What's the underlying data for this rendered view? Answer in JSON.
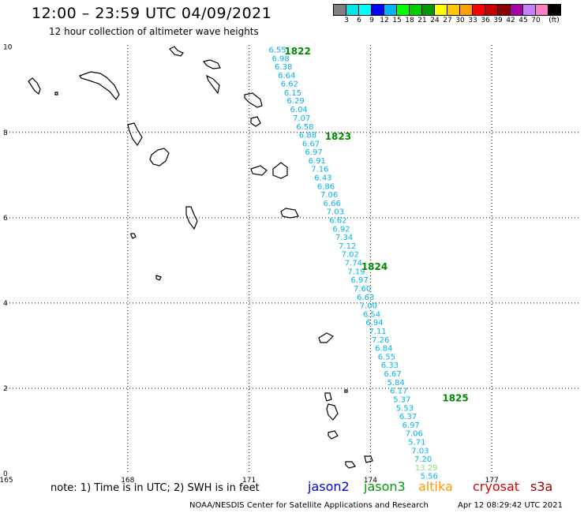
{
  "header": {
    "title": "12:00 – 23:59 UTC 04/09/2021",
    "subtitle": "12 hour collection of altimeter wave heights"
  },
  "colorbar": {
    "colors": [
      "#7f7f7f",
      "#00e6e6",
      "#00ffff",
      "#0000ff",
      "#00b4ff",
      "#00ff00",
      "#00d000",
      "#009a00",
      "#ffff00",
      "#ffc800",
      "#ffa000",
      "#ff0000",
      "#c80000",
      "#8c0000",
      "#aa00aa",
      "#c77fff",
      "#ff80c0",
      "#000000"
    ],
    "labels": [
      "3",
      "6",
      "9",
      "12",
      "15",
      "18",
      "21",
      "24",
      "27",
      "30",
      "33",
      "36",
      "39",
      "42",
      "45",
      "70"
    ],
    "unit": "(ft)"
  },
  "map": {
    "lon_ticks": [
      "165",
      "168",
      "171",
      "174",
      "177"
    ],
    "lat_ticks": [
      "0",
      "2",
      "4",
      "6",
      "8",
      "10"
    ],
    "lon_range": [
      165,
      179.2
    ],
    "lat_range": [
      0,
      10.05
    ],
    "grid_color": "#000000",
    "swh_color": "#00b4e6",
    "orbit_label_color": "#008a00",
    "orbits": [
      {
        "label": "1822",
        "lon": 172.2,
        "lat": 9.9
      },
      {
        "label": "1823",
        "lon": 173.2,
        "lat": 7.9
      },
      {
        "label": "1824",
        "lon": 174.1,
        "lat": 4.85
      },
      {
        "label": "1825",
        "lon": 176.1,
        "lat": 1.77
      }
    ],
    "track": [
      {
        "value": "6.55",
        "lon": 171.7,
        "lat": 9.95
      },
      {
        "value": "6.98",
        "lon": 171.78,
        "lat": 9.74
      },
      {
        "value": "6.38",
        "lon": 171.85,
        "lat": 9.55
      },
      {
        "value": "6.64",
        "lon": 171.93,
        "lat": 9.35
      },
      {
        "value": "6.62",
        "lon": 172.0,
        "lat": 9.15
      },
      {
        "value": "6.15",
        "lon": 172.08,
        "lat": 8.94
      },
      {
        "value": "6.29",
        "lon": 172.15,
        "lat": 8.75
      },
      {
        "value": "6.04",
        "lon": 172.23,
        "lat": 8.55
      },
      {
        "value": "7.07",
        "lon": 172.3,
        "lat": 8.35
      },
      {
        "value": "6.58",
        "lon": 172.38,
        "lat": 8.14
      },
      {
        "value": "6.88",
        "lon": 172.45,
        "lat": 7.95
      },
      {
        "value": "6.67",
        "lon": 172.53,
        "lat": 7.75
      },
      {
        "value": "6.97",
        "lon": 172.6,
        "lat": 7.55
      },
      {
        "value": "6.91",
        "lon": 172.68,
        "lat": 7.35
      },
      {
        "value": "7.16",
        "lon": 172.75,
        "lat": 7.15
      },
      {
        "value": "6.43",
        "lon": 172.83,
        "lat": 6.95
      },
      {
        "value": "6.86",
        "lon": 172.9,
        "lat": 6.75
      },
      {
        "value": "7.06",
        "lon": 172.98,
        "lat": 6.55
      },
      {
        "value": "6.66",
        "lon": 173.05,
        "lat": 6.35
      },
      {
        "value": "7.03",
        "lon": 173.13,
        "lat": 6.15
      },
      {
        "value": "6.62",
        "lon": 173.2,
        "lat": 5.95
      },
      {
        "value": "6.92",
        "lon": 173.28,
        "lat": 5.75
      },
      {
        "value": "7.34",
        "lon": 173.35,
        "lat": 5.55
      },
      {
        "value": "7.12",
        "lon": 173.43,
        "lat": 5.35
      },
      {
        "value": "7.02",
        "lon": 173.5,
        "lat": 5.15
      },
      {
        "value": "7.74",
        "lon": 173.58,
        "lat": 4.95
      },
      {
        "value": "7.19",
        "lon": 173.65,
        "lat": 4.75
      },
      {
        "value": "6.97",
        "lon": 173.73,
        "lat": 4.55
      },
      {
        "value": "7.60",
        "lon": 173.8,
        "lat": 4.35
      },
      {
        "value": "6.63",
        "lon": 173.88,
        "lat": 4.15
      },
      {
        "value": "7.00",
        "lon": 173.95,
        "lat": 3.95
      },
      {
        "value": "6.54",
        "lon": 174.03,
        "lat": 3.75
      },
      {
        "value": "6.94",
        "lon": 174.1,
        "lat": 3.55
      },
      {
        "value": "7.11",
        "lon": 174.18,
        "lat": 3.35
      },
      {
        "value": "7.26",
        "lon": 174.25,
        "lat": 3.15
      },
      {
        "value": "6.84",
        "lon": 174.33,
        "lat": 2.95
      },
      {
        "value": "6.55",
        "lon": 174.4,
        "lat": 2.75
      },
      {
        "value": "6.33",
        "lon": 174.48,
        "lat": 2.55
      },
      {
        "value": "6.67",
        "lon": 174.55,
        "lat": 2.35
      },
      {
        "value": "5.84",
        "lon": 174.63,
        "lat": 2.15
      },
      {
        "value": "6.17",
        "lon": 174.7,
        "lat": 1.95
      },
      {
        "value": "5.37",
        "lon": 174.78,
        "lat": 1.75
      },
      {
        "value": "5.53",
        "lon": 174.85,
        "lat": 1.55
      },
      {
        "value": "6.37",
        "lon": 174.93,
        "lat": 1.35
      },
      {
        "value": "6.97",
        "lon": 175.0,
        "lat": 1.15
      },
      {
        "value": "7.06",
        "lon": 175.08,
        "lat": 0.95
      },
      {
        "value": "5.71",
        "lon": 175.15,
        "lat": 0.75
      },
      {
        "value": "7.03",
        "lon": 175.23,
        "lat": 0.55
      },
      {
        "value": "7.20",
        "lon": 175.3,
        "lat": 0.35
      },
      {
        "value": "13.29",
        "lon": 175.38,
        "lat": 0.15,
        "color": "#7ee27e"
      },
      {
        "value": "5.56",
        "lon": 175.45,
        "lat": -0.05
      }
    ]
  },
  "footer": {
    "note": "note: 1) Time is in UTC; 2) SWH is in feet",
    "satellites": [
      {
        "name": "jason2",
        "color": "#0000dd"
      },
      {
        "name": "jason3",
        "color": "#009a00"
      },
      {
        "name": "altika",
        "color": "#ff9900"
      },
      {
        "name": "cryosat",
        "color": "#dd0000"
      },
      {
        "name": "s3a",
        "color": "#990000"
      }
    ],
    "credit": "NOAA/NESDIS Center for Satellite Applications and Research",
    "timestamp": "Apr 12 08:29:42 UTC 2021"
  }
}
